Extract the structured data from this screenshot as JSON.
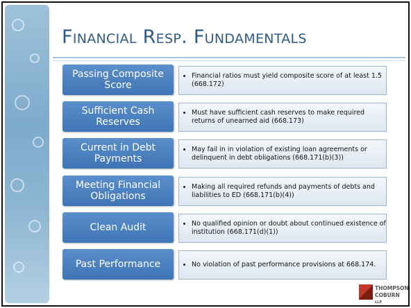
{
  "header": {
    "title": "Financial Resp. Fundamentals"
  },
  "rows": [
    {
      "label": "Passing Composite Score",
      "text": "Financial ratios must yield composite score of at least 1.5 (668.172)"
    },
    {
      "label": "Sufficient Cash Reserves",
      "text": "Must have sufficient cash reserves to make required returns of unearned aid (668.173)"
    },
    {
      "label": "Current in Debt Payments",
      "text": "May fail in in violation of existing loan agreements or delinquent in debt obligations  (668.171(b)(3))"
    },
    {
      "label": "Meeting Financial Obligations",
      "text": "Making all required refunds and payments of debts and liabilities to ED (668.171(b)(4))"
    },
    {
      "label": "Clean Audit",
      "text": "No qualified opinion or doubt about continued existence of institution (668.171(d)(1))"
    },
    {
      "label": "Past Performance",
      "text": "No violation of past performance provisions at 668.174."
    }
  ],
  "logo": {
    "line1": "THOMPSON",
    "line2": "COBURN",
    "suffix": "LLP"
  }
}
